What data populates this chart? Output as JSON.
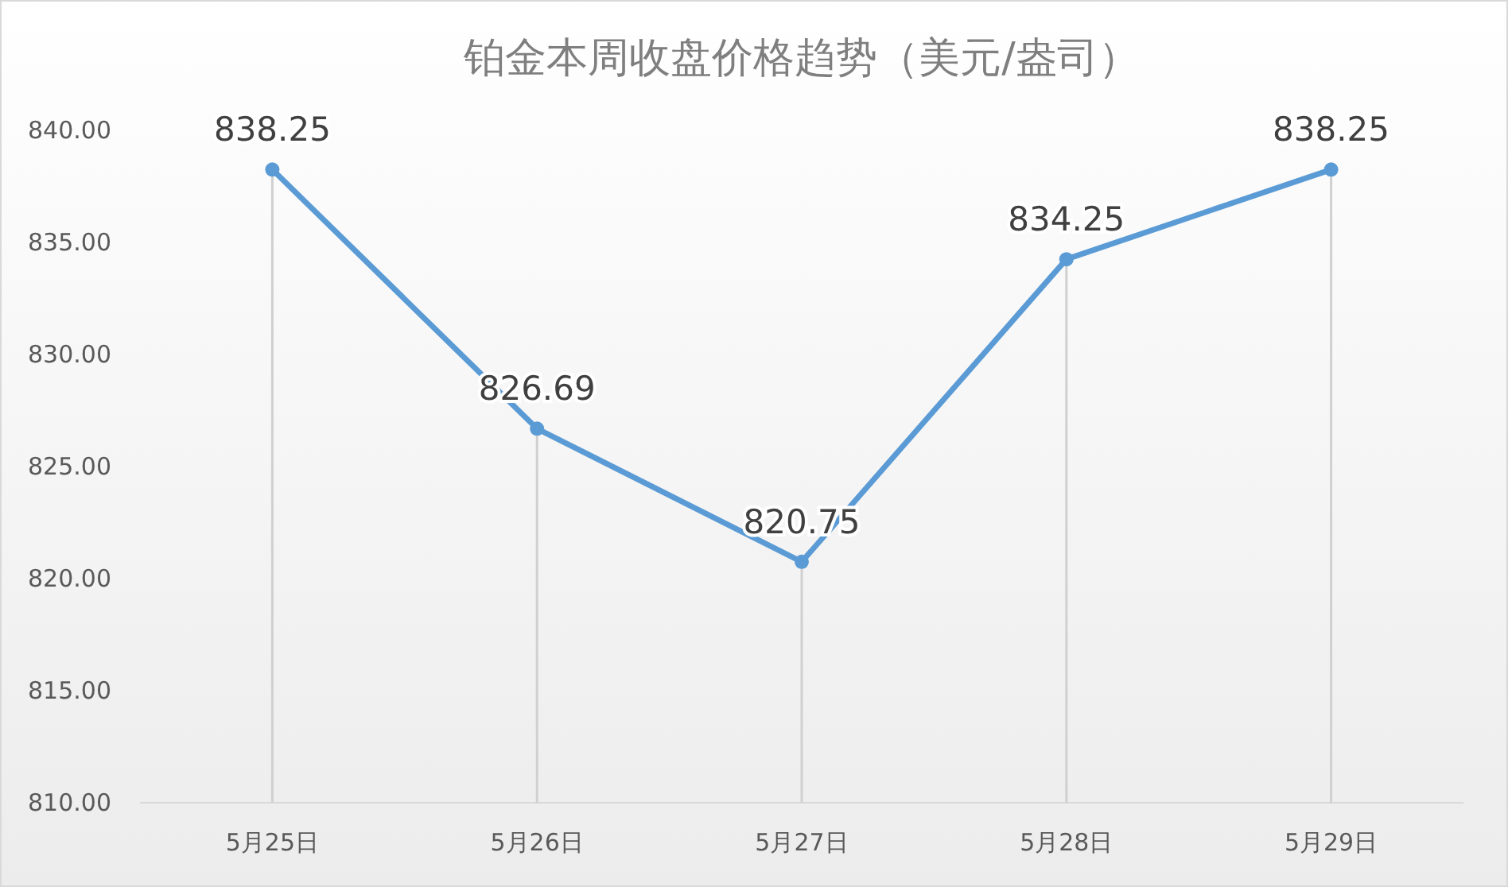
{
  "chart_data": {
    "type": "line",
    "title": "铂金本周收盘价格趋势（美元/盎司）",
    "categories": [
      "5月25日",
      "5月26日",
      "5月27日",
      "5月28日",
      "5月29日"
    ],
    "series": [
      {
        "color": "#5b9bd5",
        "values": [
          838.25,
          826.69,
          820.75,
          834.25,
          838.25
        ]
      }
    ],
    "ylim": [
      810,
      840
    ],
    "grid": "x",
    "yticks": [
      {
        "value": 810,
        "label": "810.00"
      },
      {
        "value": 815,
        "label": "815.00"
      },
      {
        "value": 820,
        "label": "820.00"
      },
      {
        "value": 825,
        "label": "825.00"
      },
      {
        "value": 830,
        "label": "830.00"
      },
      {
        "value": 835,
        "label": "835.00"
      },
      {
        "value": 840,
        "label": "840.00"
      }
    ],
    "data_labels": true,
    "marker": "circle"
  }
}
